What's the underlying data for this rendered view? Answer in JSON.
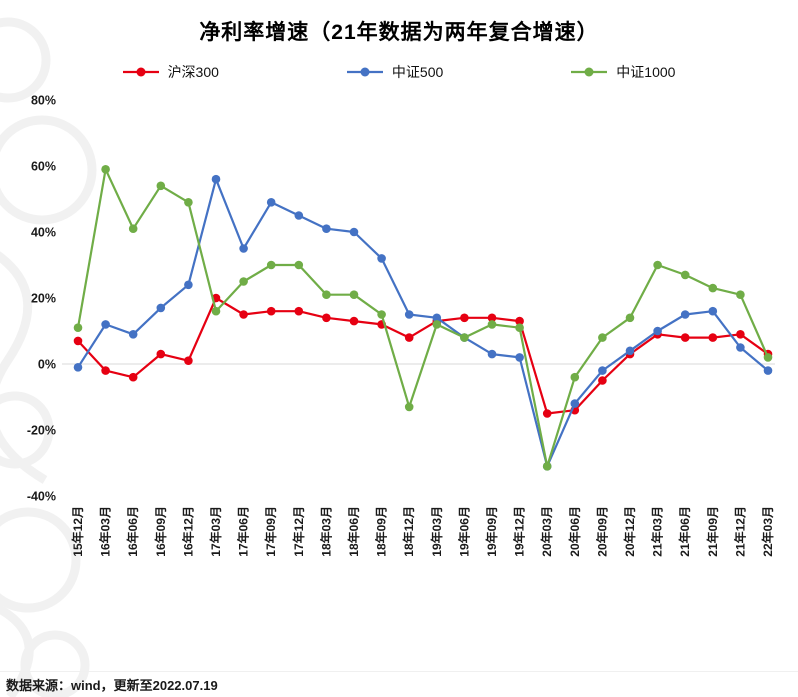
{
  "chart_data": {
    "type": "line",
    "title": "净利率增速（21年数据为两年复合增速）",
    "categories": [
      "15年12月",
      "16年03月",
      "16年06月",
      "16年09月",
      "16年12月",
      "17年03月",
      "17年06月",
      "17年09月",
      "17年12月",
      "18年03月",
      "18年06月",
      "18年09月",
      "18年12月",
      "19年03月",
      "19年06月",
      "19年09月",
      "19年12月",
      "20年03月",
      "20年06月",
      "20年09月",
      "20年12月",
      "21年03月",
      "21年06月",
      "21年09月",
      "21年12月",
      "22年03月"
    ],
    "series": [
      {
        "name": "沪深300",
        "color": "#e60012",
        "values": [
          7,
          -2,
          -4,
          3,
          1,
          20,
          15,
          16,
          16,
          14,
          13,
          12,
          8,
          13,
          14,
          14,
          13,
          -15,
          -14,
          -5,
          3,
          9,
          8,
          8,
          9,
          3
        ]
      },
      {
        "name": "中证500",
        "color": "#4472c4",
        "values": [
          -1,
          12,
          9,
          17,
          24,
          56,
          35,
          49,
          45,
          41,
          40,
          32,
          15,
          14,
          8,
          3,
          2,
          -31,
          -12,
          -2,
          4,
          10,
          15,
          16,
          5,
          -2
        ]
      },
      {
        "name": "中证1000",
        "color": "#70ad47",
        "values": [
          11,
          59,
          41,
          54,
          49,
          16,
          25,
          30,
          30,
          21,
          21,
          15,
          -13,
          12,
          8,
          12,
          11,
          -31,
          -4,
          8,
          14,
          30,
          27,
          23,
          21,
          2
        ]
      }
    ],
    "ylim": [
      -40,
      80
    ],
    "yticks": [
      80,
      60,
      40,
      20,
      0,
      -20,
      -40
    ],
    "ytick_suffix": "%",
    "grid": "zero-line-only",
    "zero_line_color": "#d9d9d9",
    "legend_position": "top"
  },
  "footer": {
    "source": "数据来源：wind，更新至2022.07.19"
  }
}
